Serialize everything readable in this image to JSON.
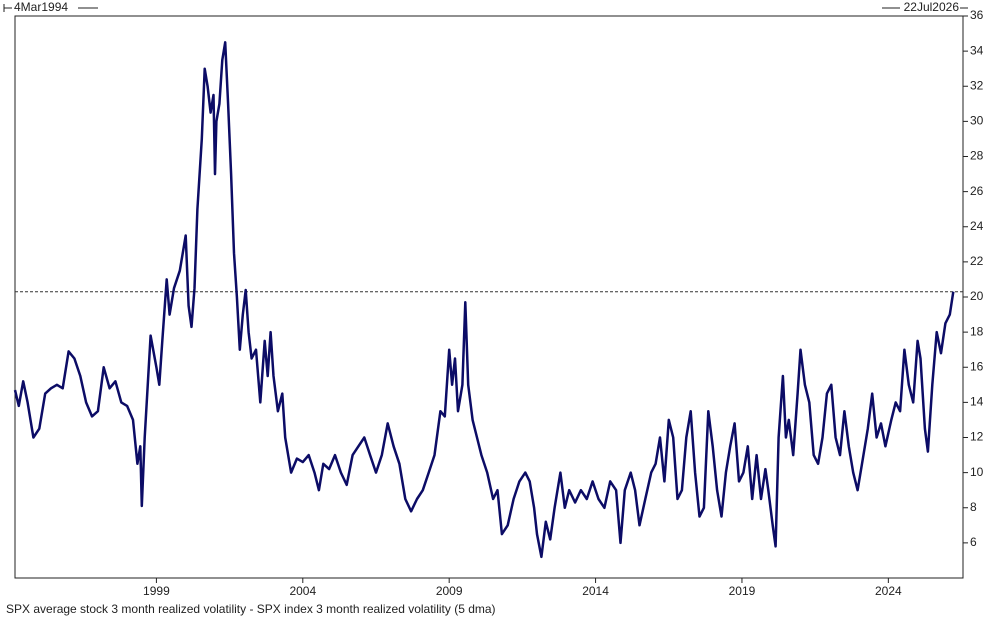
{
  "chart_data": {
    "type": "line",
    "start_label": "4Mar1994",
    "end_label": "22Jul2026",
    "x": [
      1994.17,
      1994.3,
      1994.45,
      1994.6,
      1994.8,
      1995.0,
      1995.2,
      1995.4,
      1995.6,
      1995.8,
      1996.0,
      1996.2,
      1996.4,
      1996.6,
      1996.8,
      1997.0,
      1997.2,
      1997.4,
      1997.6,
      1997.8,
      1998.0,
      1998.2,
      1998.35,
      1998.45,
      1998.5,
      1998.6,
      1998.8,
      1999.0,
      1999.1,
      1999.2,
      1999.35,
      1999.45,
      1999.6,
      1999.8,
      2000.0,
      2000.1,
      2000.2,
      2000.3,
      2000.4,
      2000.55,
      2000.65,
      2000.75,
      2000.85,
      2000.95,
      2001.0,
      2001.05,
      2001.15,
      2001.25,
      2001.35,
      2001.45,
      2001.55,
      2001.65,
      2001.75,
      2001.85,
      2001.95,
      2002.05,
      2002.15,
      2002.25,
      2002.4,
      2002.55,
      2002.7,
      2002.8,
      2002.9,
      2003.0,
      2003.15,
      2003.3,
      2003.4,
      2003.6,
      2003.8,
      2004.0,
      2004.2,
      2004.4,
      2004.55,
      2004.7,
      2004.9,
      2005.1,
      2005.3,
      2005.5,
      2005.7,
      2005.9,
      2006.1,
      2006.3,
      2006.5,
      2006.7,
      2006.9,
      2007.1,
      2007.3,
      2007.5,
      2007.7,
      2007.9,
      2008.1,
      2008.3,
      2008.5,
      2008.7,
      2008.85,
      2009.0,
      2009.1,
      2009.2,
      2009.3,
      2009.45,
      2009.55,
      2009.65,
      2009.8,
      2009.95,
      2010.1,
      2010.3,
      2010.5,
      2010.65,
      2010.8,
      2011.0,
      2011.2,
      2011.4,
      2011.6,
      2011.75,
      2011.9,
      2012.0,
      2012.15,
      2012.3,
      2012.45,
      2012.6,
      2012.8,
      2012.95,
      2013.1,
      2013.3,
      2013.5,
      2013.7,
      2013.9,
      2014.1,
      2014.3,
      2014.5,
      2014.7,
      2014.85,
      2015.0,
      2015.2,
      2015.35,
      2015.5,
      2015.7,
      2015.9,
      2016.05,
      2016.2,
      2016.35,
      2016.5,
      2016.65,
      2016.8,
      2016.95,
      2017.1,
      2017.25,
      2017.4,
      2017.55,
      2017.7,
      2017.85,
      2018.0,
      2018.15,
      2018.3,
      2018.45,
      2018.6,
      2018.75,
      2018.9,
      2019.05,
      2019.2,
      2019.35,
      2019.5,
      2019.65,
      2019.8,
      2019.9,
      2020.05,
      2020.15,
      2020.25,
      2020.4,
      2020.5,
      2020.6,
      2020.75,
      2020.9,
      2021.0,
      2021.15,
      2021.3,
      2021.45,
      2021.6,
      2021.75,
      2021.9,
      2022.05,
      2022.2,
      2022.35,
      2022.5,
      2022.65,
      2022.8,
      2022.95,
      2023.1,
      2023.3,
      2023.45,
      2023.6,
      2023.75,
      2023.9,
      2024.1,
      2024.25,
      2024.4,
      2024.55,
      2024.7,
      2024.85,
      2025.0,
      2025.1,
      2025.25,
      2025.35,
      2025.5,
      2025.65,
      2025.8,
      2025.95,
      2026.1,
      2026.22
    ],
    "series": [
      {
        "name": "SPX average stock 3 month realized volatility - SPX index 3 month realized volatility (5 dma)",
        "color": "#0c0c66",
        "values": [
          14.7,
          13.8,
          15.2,
          14.0,
          12.0,
          12.5,
          14.5,
          14.8,
          15.0,
          14.8,
          16.9,
          16.5,
          15.5,
          14.0,
          13.2,
          13.5,
          16.0,
          14.8,
          15.2,
          14.0,
          13.8,
          13.0,
          10.5,
          11.5,
          8.1,
          12.0,
          17.8,
          16.0,
          15.0,
          17.5,
          21.0,
          19.0,
          20.5,
          21.5,
          23.5,
          19.5,
          18.3,
          20.5,
          25.0,
          29.0,
          33.0,
          32.0,
          30.5,
          31.5,
          27.0,
          30.0,
          31.0,
          33.5,
          34.5,
          31.0,
          27.0,
          22.5,
          20.0,
          17.0,
          19.0,
          20.4,
          18.0,
          16.5,
          17.0,
          14.0,
          17.5,
          15.5,
          18.0,
          15.5,
          13.5,
          14.5,
          12.0,
          10.0,
          10.8,
          10.6,
          11.0,
          10.0,
          9.0,
          10.5,
          10.2,
          11.0,
          10.0,
          9.3,
          11.0,
          11.5,
          12.0,
          11.0,
          10.0,
          11.0,
          12.8,
          11.5,
          10.5,
          8.5,
          7.8,
          8.5,
          9.0,
          10.0,
          11.0,
          13.5,
          13.2,
          17.0,
          15.0,
          16.5,
          13.5,
          15.0,
          19.7,
          15.0,
          13.0,
          12.0,
          11.0,
          10.0,
          8.5,
          9.0,
          6.5,
          7.0,
          8.5,
          9.5,
          10.0,
          9.5,
          8.0,
          6.5,
          5.2,
          7.2,
          6.2,
          8.0,
          10.0,
          8.0,
          9.0,
          8.3,
          9.0,
          8.5,
          9.5,
          8.5,
          8.0,
          9.5,
          9.0,
          6.0,
          9.0,
          10.0,
          9.0,
          7.0,
          8.5,
          10.0,
          10.5,
          12.0,
          9.5,
          13.0,
          12.0,
          8.5,
          9.0,
          12.0,
          13.5,
          10.0,
          7.5,
          8.0,
          13.5,
          11.5,
          9.0,
          7.5,
          10.0,
          11.5,
          12.8,
          9.5,
          10.0,
          11.5,
          8.5,
          11.0,
          8.5,
          10.2,
          9.0,
          7.0,
          5.8,
          12.0,
          15.5,
          12.0,
          13.0,
          11.0,
          14.5,
          17.0,
          15.0,
          14.0,
          11.0,
          10.5,
          12.0,
          14.5,
          15.0,
          12.0,
          11.0,
          13.5,
          11.5,
          10.0,
          9.0,
          10.5,
          12.5,
          14.5,
          12.0,
          12.8,
          11.5,
          13.0,
          14.0,
          13.5,
          17.0,
          15.0,
          14.0,
          17.5,
          16.5,
          12.5,
          11.2,
          15.0,
          18.0,
          16.8,
          18.5,
          19.0,
          20.3
        ]
      }
    ],
    "last_value_line": 20.3,
    "xlim": [
      1994.17,
      2026.55
    ],
    "xticks": [
      1999,
      2004,
      2009,
      2014,
      2019,
      2024
    ],
    "ylim": [
      4,
      36
    ],
    "yticks": [
      6,
      8,
      10,
      12,
      14,
      16,
      18,
      20,
      22,
      24,
      26,
      28,
      30,
      32,
      34,
      36
    ]
  }
}
